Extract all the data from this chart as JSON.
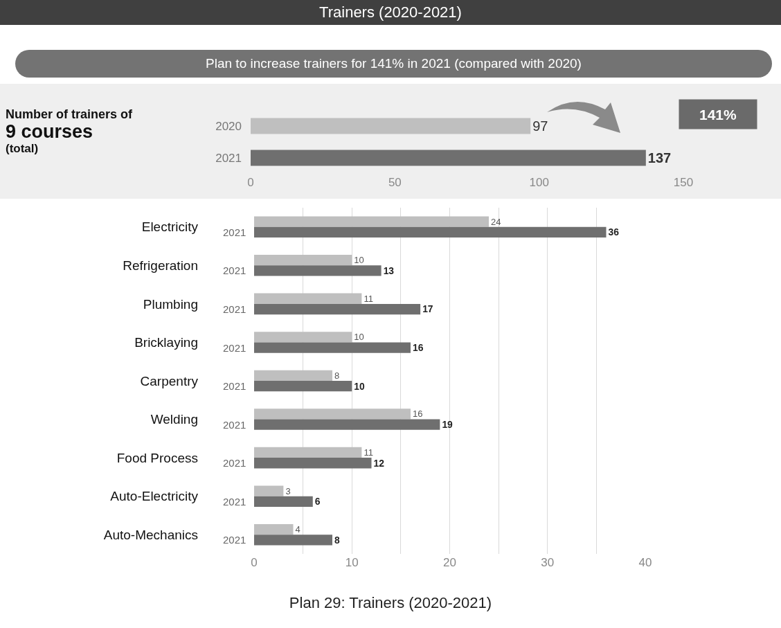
{
  "chart_data": [
    {
      "type": "bar",
      "orientation": "horizontal",
      "title": "Trainers (2020-2021)",
      "subtitle": "Plan to increase trainers for 141% in 2021 (compared with 2020)",
      "categories": [
        "2020",
        "2021"
      ],
      "values": [
        97,
        137
      ],
      "colors": [
        "#bfbfbf",
        "#6f6f6f"
      ],
      "xlim": [
        0,
        150
      ],
      "xticks": [
        0,
        50,
        100,
        150
      ],
      "data_labels": true,
      "grid": false,
      "legend": false,
      "annotations": [
        "Number of trainers of",
        "9 courses",
        "(total)",
        "141%"
      ]
    },
    {
      "type": "bar",
      "orientation": "horizontal",
      "categories": [
        "Electricity",
        "Refrigeration",
        "Plumbing",
        "Bricklaying",
        "Carpentry",
        "Welding",
        "Food Process",
        "Auto-Electricity",
        "Auto-Mechanics"
      ],
      "series": [
        {
          "color": "#bfbfbf",
          "values": [
            24,
            10,
            11,
            10,
            8,
            16,
            11,
            3,
            4
          ]
        },
        {
          "name": "2021",
          "color": "#6f6f6f",
          "values": [
            36,
            13,
            17,
            16,
            10,
            19,
            12,
            6,
            8
          ]
        }
      ],
      "xlim": [
        0,
        40
      ],
      "xticks": [
        0,
        {
          "value": 5,
          "label": null
        },
        10,
        {
          "value": 15,
          "label": null
        },
        20,
        {
          "value": 25,
          "label": null
        },
        30,
        {
          "value": 35,
          "label": null
        },
        40
      ],
      "grid": "x",
      "data_labels": true,
      "legend": false,
      "annotations": [
        "Plan 29: Trainers (2020-2021)"
      ]
    }
  ]
}
